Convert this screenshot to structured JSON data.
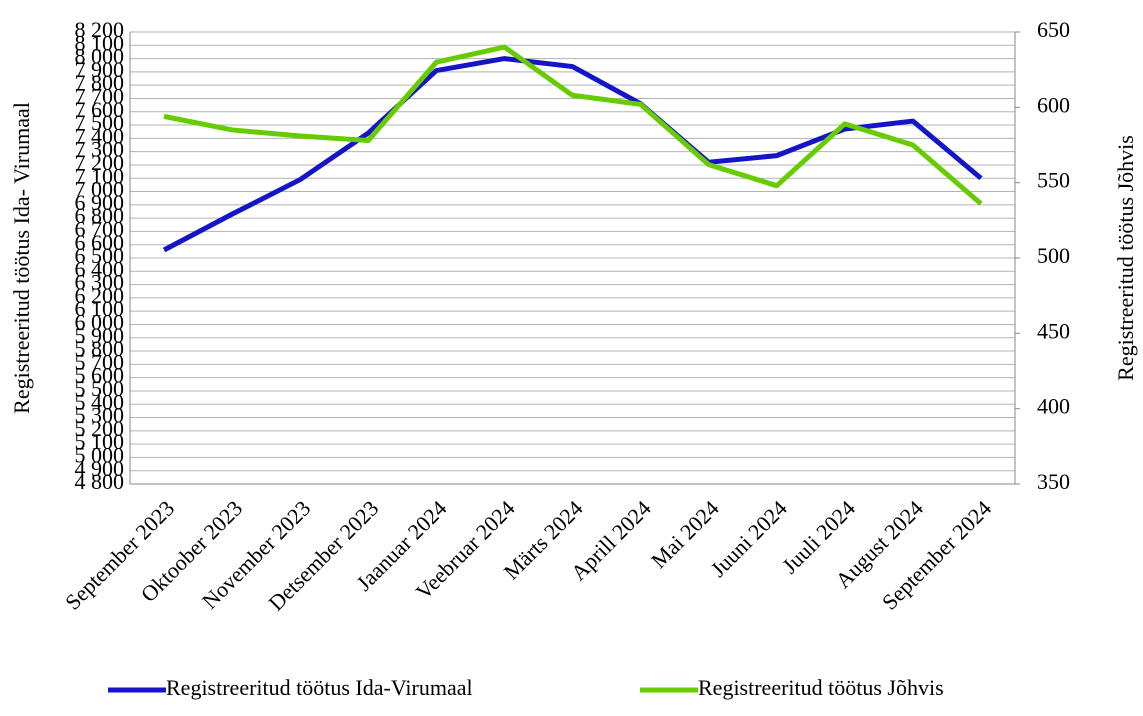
{
  "chart_data": {
    "type": "line",
    "y_label": "Registreeritud töötus Ida- Virumaal",
    "y2_label": "Registreeritud töötus Jõhvis",
    "categories": [
      "September 2023",
      "Oktoober 2023",
      "November 2023",
      "Detsember 2023",
      "Jaanuar 2024",
      "Veebruar 2024",
      "Märts 2024",
      "Aprill 2024",
      "Mai 2024",
      "Juuni 2024",
      "Juuli 2024",
      "August 2024",
      "September 2024"
    ],
    "series": [
      {
        "name": "Registreeritud töötus Ida-Virumaal",
        "color": "#1515c8",
        "axis": "y",
        "values": [
          6560,
          6830,
          7090,
          7440,
          7910,
          8000,
          7940,
          7660,
          7220,
          7270,
          7470,
          7530,
          7100
        ]
      },
      {
        "name": "Registreeritud töötus Jõhvis",
        "color": "#66cc00",
        "axis": "y2",
        "values": [
          594,
          585,
          581,
          578,
          630,
          640,
          608,
          602,
          562,
          548,
          589,
          575,
          536
        ]
      }
    ],
    "ylim": [
      4800,
      8200
    ],
    "yticks": [
      {
        "value": 4800,
        "label": "4 800"
      },
      {
        "value": 4900,
        "label": "4 900"
      },
      {
        "value": 5000,
        "label": "5 000"
      },
      {
        "value": 5100,
        "label": "5 100"
      },
      {
        "value": 5200,
        "label": "5 200"
      },
      {
        "value": 5300,
        "label": "5 300"
      },
      {
        "value": 5400,
        "label": "5 400"
      },
      {
        "value": 5500,
        "label": "5 500"
      },
      {
        "value": 5600,
        "label": "5 600"
      },
      {
        "value": 5700,
        "label": "5 700"
      },
      {
        "value": 5800,
        "label": "5 800"
      },
      {
        "value": 5900,
        "label": "5 900"
      },
      {
        "value": 6000,
        "label": "6 000"
      },
      {
        "value": 6100,
        "label": "6 100"
      },
      {
        "value": 6200,
        "label": "6 200"
      },
      {
        "value": 6300,
        "label": "6 300"
      },
      {
        "value": 6400,
        "label": "6 400"
      },
      {
        "value": 6500,
        "label": "6 500"
      },
      {
        "value": 6600,
        "label": "6 600"
      },
      {
        "value": 6700,
        "label": "6 700"
      },
      {
        "value": 6800,
        "label": "6 800"
      },
      {
        "value": 6900,
        "label": "6 900"
      },
      {
        "value": 7000,
        "label": "7 000"
      },
      {
        "value": 7100,
        "label": "7 100"
      },
      {
        "value": 7200,
        "label": "7 200"
      },
      {
        "value": 7300,
        "label": "7 300"
      },
      {
        "value": 7400,
        "label": "7 400"
      },
      {
        "value": 7500,
        "label": "7 500"
      },
      {
        "value": 7600,
        "label": "7 600"
      },
      {
        "value": 7700,
        "label": "7 700"
      },
      {
        "value": 7800,
        "label": "7 800"
      },
      {
        "value": 7900,
        "label": "7 900"
      },
      {
        "value": 8000,
        "label": "8 000"
      },
      {
        "value": 8100,
        "label": "8 100"
      },
      {
        "value": 8200,
        "label": "8 200"
      }
    ],
    "y2lim": [
      350,
      650
    ],
    "y2ticks": [
      350,
      400,
      450,
      500,
      550,
      600,
      650
    ],
    "grid": true,
    "legend": "bottom"
  }
}
